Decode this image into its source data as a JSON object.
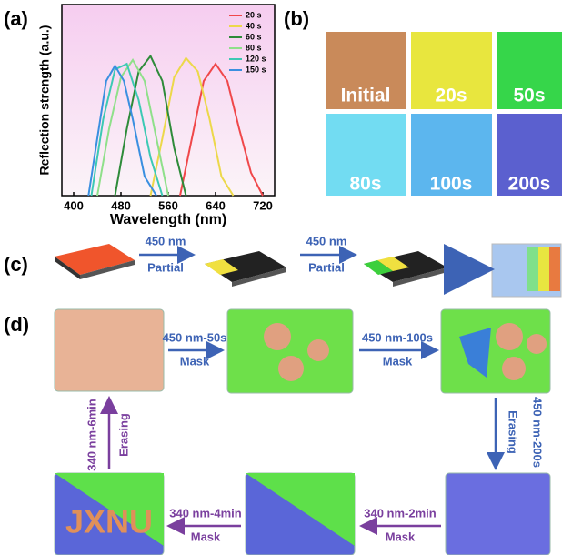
{
  "panel_labels": [
    "(a)",
    "(b)",
    "(c)",
    "(d)"
  ],
  "chart_data": {
    "type": "line",
    "xlabel": "Wavelength (nm)",
    "ylabel": "Reflection strength (a.u.)",
    "xlim": [
      380,
      740
    ],
    "xticks": [
      400,
      480,
      560,
      640,
      720
    ],
    "ylim": [
      0,
      1
    ],
    "legend": "upper right",
    "series": [
      {
        "name": "20 s",
        "color": "#f0474a",
        "x": [
          580,
          600,
          620,
          640,
          660,
          680,
          700,
          720
        ],
        "values": [
          0,
          0.3,
          0.6,
          0.69,
          0.6,
          0.35,
          0.12,
          0
        ]
      },
      {
        "name": "40 s",
        "color": "#ecd84a",
        "x": [
          530,
          550,
          570,
          590,
          610,
          630,
          650,
          670
        ],
        "values": [
          0,
          0.3,
          0.62,
          0.72,
          0.65,
          0.4,
          0.1,
          0
        ]
      },
      {
        "name": "60 s",
        "color": "#2e8b3a",
        "x": [
          470,
          490,
          510,
          530,
          550,
          570,
          590
        ],
        "values": [
          0,
          0.35,
          0.65,
          0.73,
          0.6,
          0.25,
          0
        ]
      },
      {
        "name": "80 s",
        "color": "#8fe08a",
        "x": [
          440,
          460,
          480,
          500,
          520,
          540,
          560
        ],
        "values": [
          0,
          0.35,
          0.62,
          0.71,
          0.6,
          0.3,
          0
        ]
      },
      {
        "name": "120 s",
        "color": "#3cc9b4",
        "x": [
          430,
          450,
          470,
          490,
          510,
          530,
          550
        ],
        "values": [
          0,
          0.4,
          0.66,
          0.69,
          0.5,
          0.2,
          0
        ]
      },
      {
        "name": "150 s",
        "color": "#3a8fe0",
        "x": [
          425,
          440,
          455,
          470,
          485,
          500,
          520,
          540
        ],
        "values": [
          0,
          0.3,
          0.6,
          0.68,
          0.6,
          0.4,
          0.1,
          0
        ]
      }
    ]
  },
  "panel_b": {
    "tiles": [
      "Initial",
      "20s",
      "50s",
      "80s",
      "100s",
      "200s"
    ]
  },
  "panel_c": {
    "steps": [
      {
        "top": "450 nm",
        "bottom": "Partial"
      },
      {
        "top": "450 nm",
        "bottom": "Partial"
      }
    ]
  },
  "panel_d": {
    "steps": [
      {
        "top": "450 nm-50s",
        "bottom": "Mask"
      },
      {
        "top": "450 nm-100s",
        "bottom": "Mask"
      },
      {
        "top": "450 nm-200s",
        "bottom": "Erasing"
      },
      {
        "top": "340 nm-2min",
        "bottom": "Mask"
      },
      {
        "top": "340 nm-4min",
        "bottom": "Mask"
      },
      {
        "top": "340 nm-6min",
        "bottom": "Erasing"
      }
    ],
    "image_text": "JXNU"
  }
}
